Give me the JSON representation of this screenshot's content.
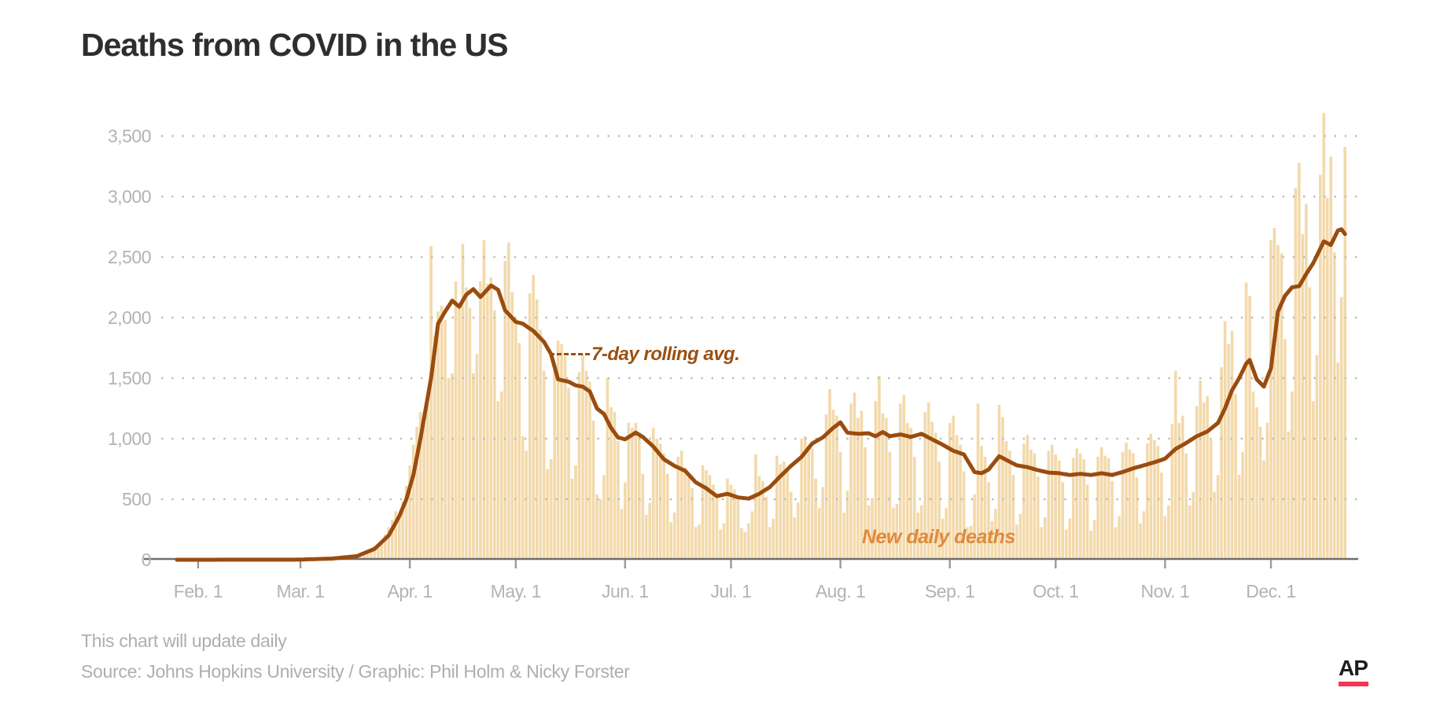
{
  "title": "Deaths from COVID in the US",
  "annotations": {
    "rolling_avg_label": "7-day rolling avg.",
    "daily_deaths_label": "New daily deaths"
  },
  "footer": {
    "update_note": "This chart will update daily",
    "source_line": "Source: Johns Hopkins University / Graphic: Phil Holm & Nicky Forster"
  },
  "logo": {
    "text": "AP"
  },
  "colors": {
    "background": "#ffffff",
    "title": "#2e2e2e",
    "bars": "#f3d9ab",
    "line": "#9a4c0e",
    "annotation_avg": "#9a5012",
    "annotation_daily": "#e08a3e",
    "axis_label": "#b3b3b3",
    "grid_dot": "#bdbdbd",
    "axis_line": "#6f6f6f",
    "tick": "#9a9a9a",
    "footer_text": "#aeaeae",
    "logo_black": "#1d1d1d",
    "logo_red": "#f6364f"
  },
  "chart_data": {
    "type": "bar+line",
    "title": "Deaths from COVID in the US",
    "xlabel": "",
    "ylabel": "",
    "start_date": "2020-01-26",
    "end_date": "2020-12-22",
    "ylim": [
      0,
      3700
    ],
    "grid": "dotted-horizontal",
    "y_ticks": [
      {
        "value": 0,
        "label": "0"
      },
      {
        "value": 500,
        "label": "500"
      },
      {
        "value": 1000,
        "label": "1,000"
      },
      {
        "value": 1500,
        "label": "1,500"
      },
      {
        "value": 2000,
        "label": "2,000"
      },
      {
        "value": 2500,
        "label": "2,500"
      },
      {
        "value": 3000,
        "label": "3,000"
      },
      {
        "value": 3500,
        "label": "3,500"
      }
    ],
    "x_ticks": [
      {
        "day": 6,
        "label": "Feb. 1"
      },
      {
        "day": 35,
        "label": "Mar. 1"
      },
      {
        "day": 66,
        "label": "Apr. 1"
      },
      {
        "day": 96,
        "label": "May. 1"
      },
      {
        "day": 127,
        "label": "Jun. 1"
      },
      {
        "day": 157,
        "label": "Jul. 1"
      },
      {
        "day": 188,
        "label": "Aug. 1"
      },
      {
        "day": 219,
        "label": "Sep. 1"
      },
      {
        "day": 249,
        "label": "Oct. 1"
      },
      {
        "day": 280,
        "label": "Nov. 1"
      },
      {
        "day": 310,
        "label": "Dec. 1"
      }
    ],
    "series": [
      {
        "name": "New daily deaths",
        "type": "bar",
        "values": [
          0,
          0,
          0,
          0,
          0,
          0,
          0,
          0,
          0,
          0,
          0,
          0,
          0,
          0,
          0,
          0,
          0,
          0,
          0,
          0,
          0,
          0,
          0,
          0,
          0,
          0,
          0,
          0,
          0,
          0,
          0,
          0,
          0,
          0,
          1,
          1,
          1,
          2,
          3,
          3,
          4,
          5,
          4,
          6,
          8,
          10,
          14,
          17,
          20,
          22,
          26,
          32,
          42,
          50,
          58,
          62,
          85,
          110,
          150,
          210,
          270,
          330,
          400,
          350,
          480,
          610,
          780,
          950,
          1100,
          1220,
          1150,
          1300,
          2590,
          1850,
          2050,
          2100,
          1980,
          1500,
          1540,
          2300,
          2110,
          2610,
          2250,
          2080,
          1540,
          1700,
          2300,
          2640,
          2280,
          2330,
          2060,
          1310,
          1390,
          2470,
          2620,
          2210,
          2000,
          1790,
          1020,
          900,
          2200,
          2350,
          2150,
          1900,
          1560,
          750,
          830,
          1630,
          1810,
          1780,
          1680,
          1420,
          670,
          780,
          1550,
          1700,
          1560,
          1470,
          1150,
          540,
          500,
          700,
          1500,
          1260,
          1220,
          980,
          420,
          640,
          1130,
          1090,
          1130,
          1050,
          710,
          370,
          470,
          1090,
          1000,
          960,
          880,
          710,
          310,
          390,
          850,
          900,
          760,
          720,
          590,
          270,
          290,
          780,
          740,
          700,
          620,
          510,
          250,
          300,
          670,
          620,
          580,
          520,
          260,
          230,
          300,
          400,
          870,
          690,
          650,
          520,
          270,
          340,
          860,
          790,
          810,
          750,
          560,
          350,
          470,
          1000,
          1020,
          940,
          920,
          670,
          430,
          600,
          1200,
          1410,
          1240,
          1190,
          890,
          390,
          570,
          1290,
          1380,
          1170,
          1230,
          930,
          450,
          510,
          1310,
          1520,
          1210,
          1170,
          890,
          430,
          460,
          1290,
          1360,
          1130,
          1090,
          850,
          390,
          450,
          1220,
          1300,
          1140,
          1050,
          810,
          340,
          430,
          1130,
          1190,
          1030,
          950,
          730,
          270,
          280,
          540,
          1290,
          940,
          850,
          640,
          320,
          420,
          1280,
          1180,
          980,
          900,
          700,
          290,
          380,
          960,
          1030,
          910,
          880,
          690,
          270,
          350,
          900,
          950,
          870,
          820,
          640,
          250,
          340,
          840,
          920,
          880,
          830,
          620,
          240,
          330,
          850,
          930,
          860,
          840,
          650,
          270,
          360,
          890,
          970,
          910,
          880,
          680,
          300,
          400,
          960,
          1040,
          990,
          940,
          720,
          360,
          450,
          1120,
          1560,
          1130,
          1190,
          880,
          450,
          560,
          1270,
          1480,
          1300,
          1350,
          990,
          560,
          700,
          1590,
          1970,
          1780,
          1890,
          1370,
          700,
          890,
          2290,
          2180,
          1390,
          1260,
          1100,
          820,
          1130,
          2640,
          2740,
          2600,
          2530,
          1820,
          1060,
          1390,
          3070,
          3280,
          2690,
          2940,
          2250,
          1310,
          1690,
          3180,
          3690,
          2990,
          3330,
          2540,
          1630,
          2170,
          3410
        ]
      },
      {
        "name": "7-day rolling avg.",
        "type": "line",
        "anchor_points": [
          {
            "day": 0,
            "value": 0
          },
          {
            "day": 34,
            "value": 1
          },
          {
            "day": 44,
            "value": 10
          },
          {
            "day": 51,
            "value": 30
          },
          {
            "day": 56,
            "value": 90
          },
          {
            "day": 60,
            "value": 200
          },
          {
            "day": 63,
            "value": 360
          },
          {
            "day": 65,
            "value": 500
          },
          {
            "day": 67,
            "value": 700
          },
          {
            "day": 69,
            "value": 1000
          },
          {
            "day": 72,
            "value": 1500
          },
          {
            "day": 74,
            "value": 1950
          },
          {
            "day": 76,
            "value": 2050
          },
          {
            "day": 78,
            "value": 2140
          },
          {
            "day": 80,
            "value": 2090
          },
          {
            "day": 82,
            "value": 2190
          },
          {
            "day": 84,
            "value": 2235
          },
          {
            "day": 86,
            "value": 2170
          },
          {
            "day": 89,
            "value": 2265
          },
          {
            "day": 91,
            "value": 2230
          },
          {
            "day": 93,
            "value": 2060
          },
          {
            "day": 96,
            "value": 1965
          },
          {
            "day": 98,
            "value": 1950
          },
          {
            "day": 101,
            "value": 1890
          },
          {
            "day": 104,
            "value": 1800
          },
          {
            "day": 106,
            "value": 1700
          },
          {
            "day": 108,
            "value": 1490
          },
          {
            "day": 111,
            "value": 1470
          },
          {
            "day": 113,
            "value": 1440
          },
          {
            "day": 115,
            "value": 1430
          },
          {
            "day": 117,
            "value": 1390
          },
          {
            "day": 119,
            "value": 1250
          },
          {
            "day": 121,
            "value": 1205
          },
          {
            "day": 123,
            "value": 1090
          },
          {
            "day": 125,
            "value": 1010
          },
          {
            "day": 127,
            "value": 995
          },
          {
            "day": 130,
            "value": 1050
          },
          {
            "day": 132,
            "value": 1015
          },
          {
            "day": 135,
            "value": 935
          },
          {
            "day": 138,
            "value": 830
          },
          {
            "day": 141,
            "value": 775
          },
          {
            "day": 144,
            "value": 735
          },
          {
            "day": 147,
            "value": 640
          },
          {
            "day": 150,
            "value": 590
          },
          {
            "day": 153,
            "value": 525
          },
          {
            "day": 156,
            "value": 545
          },
          {
            "day": 159,
            "value": 515
          },
          {
            "day": 162,
            "value": 505
          },
          {
            "day": 165,
            "value": 545
          },
          {
            "day": 168,
            "value": 600
          },
          {
            "day": 171,
            "value": 690
          },
          {
            "day": 174,
            "value": 775
          },
          {
            "day": 177,
            "value": 850
          },
          {
            "day": 180,
            "value": 960
          },
          {
            "day": 183,
            "value": 1010
          },
          {
            "day": 186,
            "value": 1090
          },
          {
            "day": 188,
            "value": 1135
          },
          {
            "day": 190,
            "value": 1050
          },
          {
            "day": 193,
            "value": 1040
          },
          {
            "day": 196,
            "value": 1045
          },
          {
            "day": 198,
            "value": 1020
          },
          {
            "day": 200,
            "value": 1055
          },
          {
            "day": 202,
            "value": 1020
          },
          {
            "day": 205,
            "value": 1035
          },
          {
            "day": 208,
            "value": 1015
          },
          {
            "day": 211,
            "value": 1040
          },
          {
            "day": 214,
            "value": 995
          },
          {
            "day": 217,
            "value": 950
          },
          {
            "day": 220,
            "value": 900
          },
          {
            "day": 223,
            "value": 870
          },
          {
            "day": 226,
            "value": 725
          },
          {
            "day": 228,
            "value": 715
          },
          {
            "day": 230,
            "value": 745
          },
          {
            "day": 233,
            "value": 855
          },
          {
            "day": 235,
            "value": 825
          },
          {
            "day": 238,
            "value": 780
          },
          {
            "day": 241,
            "value": 765
          },
          {
            "day": 244,
            "value": 740
          },
          {
            "day": 247,
            "value": 720
          },
          {
            "day": 250,
            "value": 715
          },
          {
            "day": 253,
            "value": 700
          },
          {
            "day": 256,
            "value": 710
          },
          {
            "day": 259,
            "value": 700
          },
          {
            "day": 262,
            "value": 715
          },
          {
            "day": 265,
            "value": 700
          },
          {
            "day": 268,
            "value": 725
          },
          {
            "day": 271,
            "value": 755
          },
          {
            "day": 274,
            "value": 780
          },
          {
            "day": 277,
            "value": 805
          },
          {
            "day": 280,
            "value": 835
          },
          {
            "day": 283,
            "value": 915
          },
          {
            "day": 286,
            "value": 965
          },
          {
            "day": 289,
            "value": 1020
          },
          {
            "day": 292,
            "value": 1060
          },
          {
            "day": 295,
            "value": 1130
          },
          {
            "day": 297,
            "value": 1250
          },
          {
            "day": 299,
            "value": 1400
          },
          {
            "day": 301,
            "value": 1500
          },
          {
            "day": 303,
            "value": 1620
          },
          {
            "day": 304,
            "value": 1650
          },
          {
            "day": 306,
            "value": 1490
          },
          {
            "day": 308,
            "value": 1430
          },
          {
            "day": 310,
            "value": 1580
          },
          {
            "day": 312,
            "value": 2050
          },
          {
            "day": 314,
            "value": 2180
          },
          {
            "day": 316,
            "value": 2250
          },
          {
            "day": 318,
            "value": 2260
          },
          {
            "day": 320,
            "value": 2360
          },
          {
            "day": 322,
            "value": 2450
          },
          {
            "day": 324,
            "value": 2570
          },
          {
            "day": 325,
            "value": 2630
          },
          {
            "day": 327,
            "value": 2600
          },
          {
            "day": 329,
            "value": 2720
          },
          {
            "day": 330,
            "value": 2730
          },
          {
            "day": 331,
            "value": 2690
          }
        ]
      }
    ]
  }
}
